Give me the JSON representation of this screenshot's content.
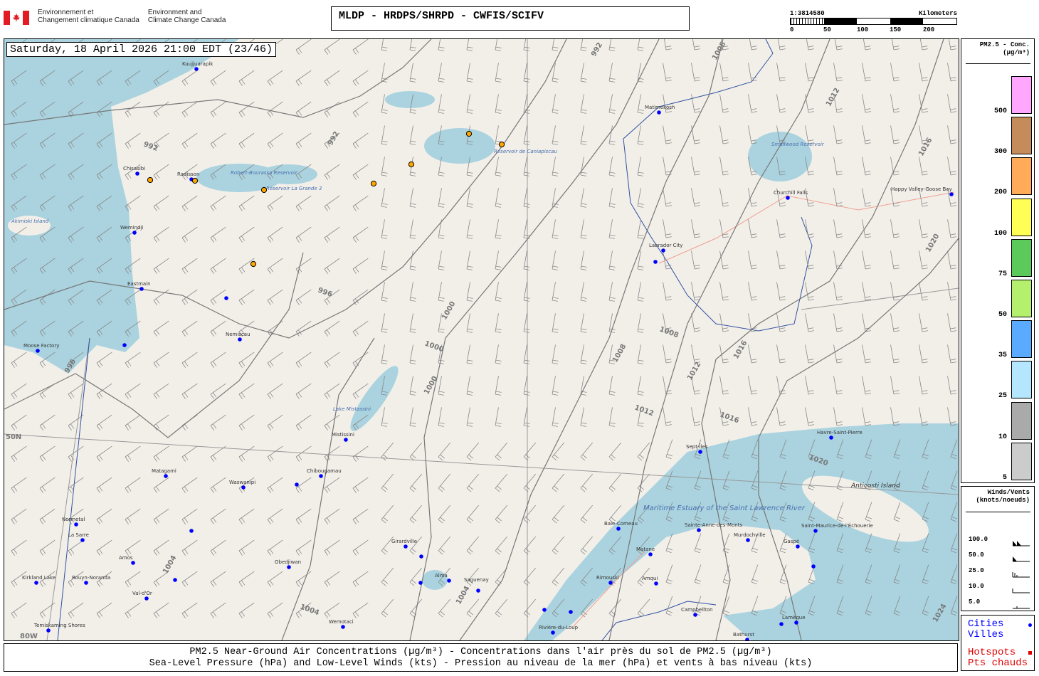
{
  "header": {
    "agency_fr": [
      "Environnement et",
      "Changement climatique Canada"
    ],
    "agency_en": [
      "Environment and",
      "Climate Change Canada"
    ],
    "title": "MLDP - HRDPS/SHRPD - CWFIS/SCIFV",
    "scale": {
      "ratio": "1:3814580",
      "unit": "Kilometers",
      "ticks": [
        "0",
        "50",
        "100",
        "150",
        "200"
      ]
    }
  },
  "map": {
    "timestamp": "Saturday, 18 April 2026 21:00 EDT (23/46)",
    "grid_labels": [
      "50N",
      "80W"
    ],
    "cities": [
      "Kuujjuarapik",
      "Chisasibi",
      "Radisson",
      "Wemindji",
      "Eastmain",
      "Nemiscau",
      "Moose Factory",
      "Mistissini",
      "Chibougamau",
      "Matagami",
      "Waswanipi",
      "Normetal",
      "La Sarre",
      "Amos",
      "Kirkland Lake",
      "Rouyn-Noranda",
      "Val-d'Or",
      "Temiskaming Shores",
      "Obedjiwan",
      "Wemotaci",
      "Girardville",
      "Alma",
      "Saguenay",
      "Baie-Comeau",
      "Matane",
      "Rimouski",
      "Amqui",
      "Sainte-Anne-des-Monts",
      "Murdochville",
      "Gaspé",
      "Saint-Maurice-de-l'Échouerie",
      "Sept-Îles",
      "Havre-Saint-Pierre",
      "Churchill Falls",
      "Labrador City",
      "Matimekosh",
      "Happy Valley-Goose Bay",
      "Campbellton",
      "Bathurst",
      "Lamèque",
      "Rivière-du-Loup"
    ],
    "features": [
      "Akimiski Island",
      "Robert-Bourassa Reservoir",
      "Réservoir La Grande 3",
      "Lake Mistassini",
      "Smallwood Reservoir",
      "Réservoir de Caniapiscau",
      "Anticosti Island",
      "Maritime Estuary of the Saint Lawrence River"
    ],
    "isobars": [
      "992",
      "992",
      "992",
      "996",
      "996",
      "1000",
      "1000",
      "1000",
      "1004",
      "1004",
      "1004",
      "1008",
      "1008",
      "1008",
      "1012",
      "1012",
      "1012",
      "1016",
      "1016",
      "1016",
      "1020",
      "1020",
      "1024"
    ],
    "hotspot_count": 9,
    "colors": {
      "water": "#aad3df",
      "land": "#f2efe9",
      "city": "#0000ff",
      "hotspot": "#ffa500",
      "isobar": "#777777",
      "border": "#3050a0"
    }
  },
  "legend": {
    "pm_title": [
      "PM2.5 - Conc.",
      "(µg/m³)"
    ],
    "pm_bins": [
      {
        "label": "500",
        "color": "#ffa6ff"
      },
      {
        "label": "300",
        "color": "#c48c5a"
      },
      {
        "label": "200",
        "color": "#ffab5a"
      },
      {
        "label": "100",
        "color": "#ffff55"
      },
      {
        "label": "75",
        "color": "#5bca5b"
      },
      {
        "label": "50",
        "color": "#b4f06e"
      },
      {
        "label": "35",
        "color": "#5aaaff"
      },
      {
        "label": "25",
        "color": "#b4e6ff"
      },
      {
        "label": "10",
        "color": "#aaaaaa"
      },
      {
        "label": "5",
        "color": "#cccccc"
      }
    ],
    "wind_title": [
      "Winds/Vents",
      "(knots/noeuds)"
    ],
    "wind_rows": [
      "100.0",
      "50.0",
      "25.0",
      "10.0",
      "5.0"
    ],
    "cities_label": [
      "Cities",
      "Villes"
    ],
    "hotspots_label": [
      "Hotspots",
      "Pts chauds"
    ]
  },
  "footer": {
    "line1": "PM2.5 Near-Ground Air Concentrations (µg/m³) - Concentrations dans l'air près du sol de PM2.5 (µg/m³)",
    "line2": "Sea-Level Pressure (hPa) and Low-Level Winds (kts) - Pression au niveau de la mer (hPa) et vents à bas niveau (kts)"
  }
}
